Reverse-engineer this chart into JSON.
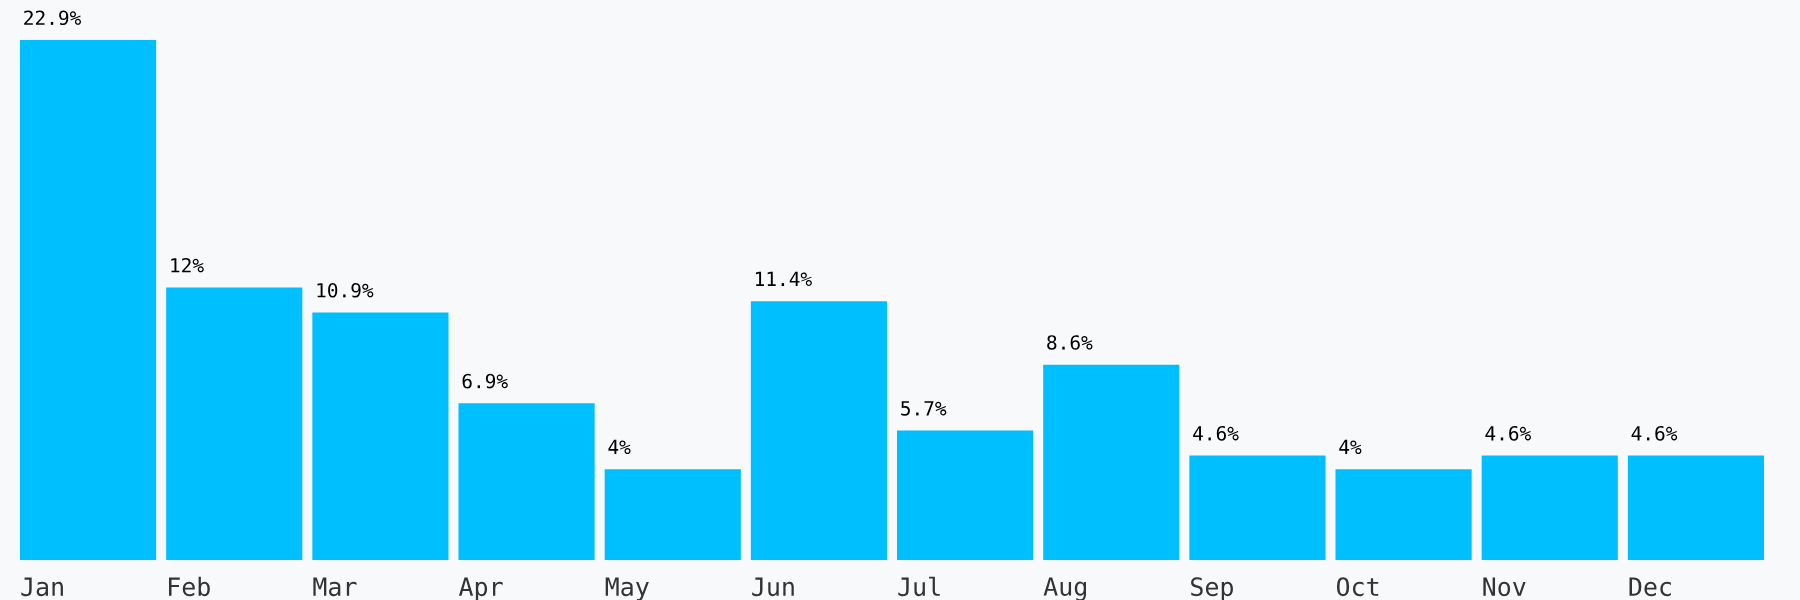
{
  "chart_data": {
    "type": "bar",
    "categories": [
      "Jan",
      "Feb",
      "Mar",
      "Apr",
      "May",
      "Jun",
      "Jul",
      "Aug",
      "Sep",
      "Oct",
      "Nov",
      "Dec"
    ],
    "values": [
      22.9,
      12,
      10.9,
      6.9,
      4,
      11.4,
      5.7,
      8.6,
      4.6,
      4,
      4.6,
      4.6
    ],
    "value_labels": [
      "22.9%",
      "12%",
      "10.9%",
      "6.9%",
      "4%",
      "11.4%",
      "5.7%",
      "8.6%",
      "4.6%",
      "4%",
      "4.6%",
      "4.6%"
    ],
    "color": "#00bfff",
    "grid": false,
    "legend": false
  }
}
